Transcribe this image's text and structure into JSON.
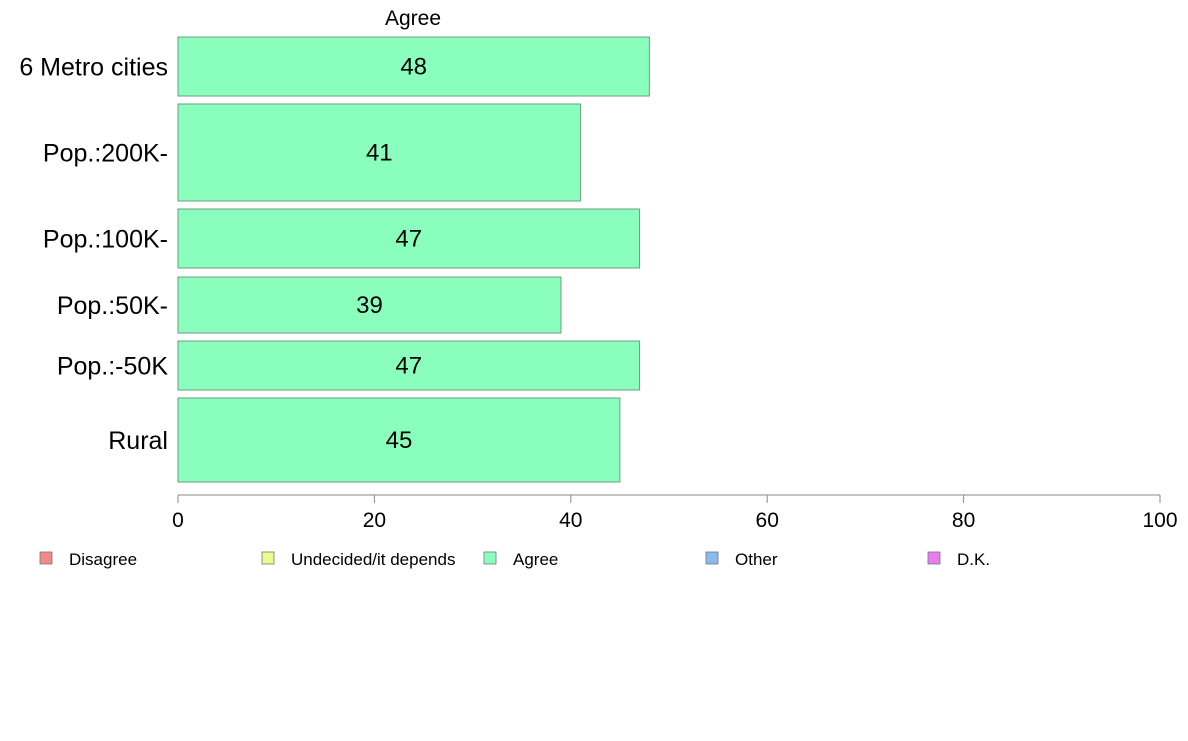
{
  "chart_data": {
    "type": "bar",
    "orientation": "horizontal",
    "title": "Agree",
    "categories": [
      "6 Metro cities",
      "Pop.:200K-",
      "Pop.:100K-",
      "Pop.:50K-",
      "Pop.:-50K",
      "Rural"
    ],
    "series": [
      {
        "name": "Agree",
        "values": [
          48,
          41,
          47,
          39,
          47,
          45
        ]
      }
    ],
    "data_labels": [
      "48",
      "41",
      "47",
      "39",
      "47",
      "45"
    ],
    "xlim": [
      0,
      100
    ],
    "x_ticks": [
      0,
      20,
      40,
      60,
      80,
      100
    ],
    "x_tick_labels": [
      "0",
      "20",
      "40",
      "60",
      "80",
      "100"
    ],
    "grid": false,
    "legend": {
      "placement": "bottom",
      "entries": [
        {
          "label": "Disagree",
          "color": "#f28a8a"
        },
        {
          "label": "Undecided/it depends",
          "color": "#eefa8c"
        },
        {
          "label": "Agree",
          "color": "#8affbd"
        },
        {
          "label": "Other",
          "color": "#8ab8f2"
        },
        {
          "label": "D.K.",
          "color": "#ea7cf0"
        }
      ]
    },
    "bar_color": "#8affbd",
    "bar_stroke": "#6e9e80"
  }
}
